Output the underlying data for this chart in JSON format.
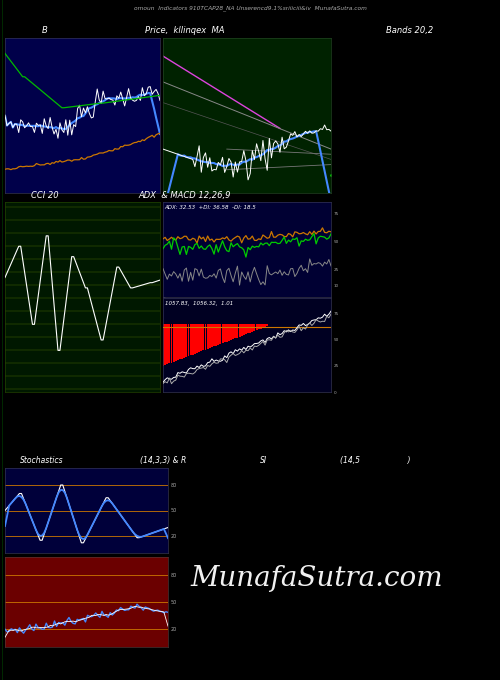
{
  "title": "omoun  Indicators 910TCAP28_NA Unserencd9.1%sriiiciii&iv  MunafaSutra.com",
  "bg_color": "#000000",
  "panel1_bg": "#00004a",
  "panel2_bg": "#002200",
  "panel4_bg": "#001800",
  "panel5a_bg": "#000033",
  "panel5b_bg": "#000022",
  "panel6_bg": "#00003a",
  "panel6b_bg": "#6b0000",
  "watermark": "MunafaSutra.com",
  "panel1_title": "B",
  "panel2_title": "Price,  kllinqex  MA",
  "panel3_title": "Bands 20,2",
  "panel4_title": "CCI 20",
  "panel5_title": "ADX  & MACD 12,26,9",
  "panel6_title": "Stochastics",
  "panel6_subtitle": "(14,3,3) & R",
  "panel7_title": "SI",
  "panel7_subtitle": "(14,5                    )",
  "adx_label": "ADX: 32.53  +DI: 36.58  -DI: 18.5",
  "macd_label": "1057.83,  1056.32,  1.01"
}
